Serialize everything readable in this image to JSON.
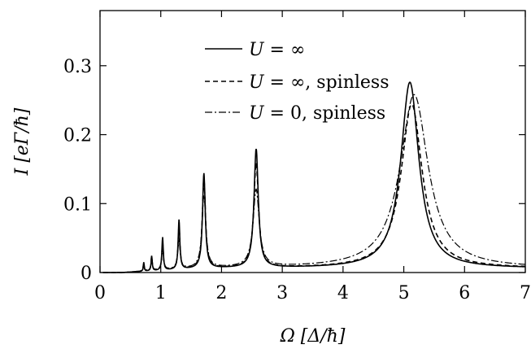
{
  "chart_data": {
    "type": "line",
    "xlabel": "Ω [Δ/ħ]",
    "ylabel": "I [eΓ/ħ]",
    "xlim": [
      0,
      7
    ],
    "ylim": [
      0,
      0.38
    ],
    "x_ticks": [
      0,
      1,
      2,
      3,
      4,
      5,
      6,
      7
    ],
    "x_tick_labels": [
      "0",
      "1",
      "2",
      "3",
      "4",
      "5",
      "6",
      "7"
    ],
    "y_ticks": [
      0,
      0.1,
      0.2,
      0.3
    ],
    "y_tick_labels": [
      "0",
      "0.1",
      "0.2",
      "0.3"
    ],
    "grid": false,
    "legend_position": "top-left",
    "series": [
      {
        "name": "U = ∞",
        "style": "solid",
        "peaks": [
          {
            "x": 0.72,
            "height": 0.014,
            "width": 0.018
          },
          {
            "x": 0.85,
            "height": 0.022,
            "width": 0.022
          },
          {
            "x": 1.03,
            "height": 0.048,
            "width": 0.028
          },
          {
            "x": 1.3,
            "height": 0.072,
            "width": 0.034
          },
          {
            "x": 1.71,
            "height": 0.138,
            "width": 0.055
          },
          {
            "x": 2.57,
            "height": 0.172,
            "width": 0.085
          },
          {
            "x": 5.1,
            "height": 0.27,
            "width": 0.36
          }
        ]
      },
      {
        "name": "U = ∞, spinless",
        "style": "dashed",
        "peaks": [
          {
            "x": 0.72,
            "height": 0.012,
            "width": 0.02
          },
          {
            "x": 0.85,
            "height": 0.02,
            "width": 0.024
          },
          {
            "x": 1.03,
            "height": 0.04,
            "width": 0.03
          },
          {
            "x": 1.3,
            "height": 0.062,
            "width": 0.038
          },
          {
            "x": 1.71,
            "height": 0.13,
            "width": 0.062
          },
          {
            "x": 2.57,
            "height": 0.152,
            "width": 0.095
          },
          {
            "x": 5.13,
            "height": 0.238,
            "width": 0.42
          }
        ]
      },
      {
        "name": "U = 0, spinless",
        "style": "dashdot",
        "peaks": [
          {
            "x": 0.72,
            "height": 0.01,
            "width": 0.025
          },
          {
            "x": 0.85,
            "height": 0.015,
            "width": 0.03
          },
          {
            "x": 1.03,
            "height": 0.028,
            "width": 0.04
          },
          {
            "x": 1.3,
            "height": 0.04,
            "width": 0.05
          },
          {
            "x": 1.71,
            "height": 0.105,
            "width": 0.075
          },
          {
            "x": 2.57,
            "height": 0.112,
            "width": 0.12
          },
          {
            "x": 5.17,
            "height": 0.252,
            "width": 0.56
          }
        ]
      }
    ]
  },
  "legend": {
    "items": [
      {
        "prefix": "U",
        "suffix": " = ∞"
      },
      {
        "prefix": "U",
        "suffix": " = ∞, spinless"
      },
      {
        "prefix": "U",
        "suffix": " = 0, spinless"
      }
    ]
  }
}
